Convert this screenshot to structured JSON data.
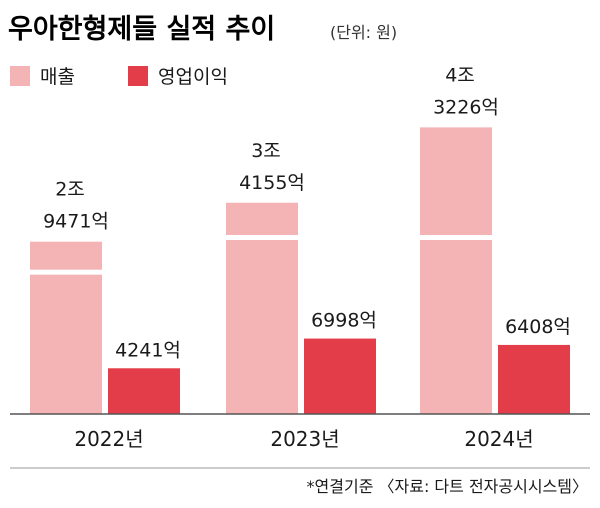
{
  "chart_data": {
    "type": "bar",
    "title": "우아한형제들 실적 추이",
    "unit": "(단위: 원)",
    "categories": [
      "2022년",
      "2023년",
      "2024년"
    ],
    "series": [
      {
        "name": "매출",
        "values": [
          29471,
          34155,
          43226
        ],
        "labels": [
          [
            "2조",
            "9471억"
          ],
          [
            "3조",
            "4155억"
          ],
          [
            "4조",
            "3226억"
          ]
        ]
      },
      {
        "name": "영업이익",
        "values": [
          4241,
          6998,
          6408
        ],
        "labels": [
          "4241억",
          "6998억",
          "6408억"
        ]
      }
    ],
    "value_unit": "억원",
    "axis_break": true,
    "legend_position": "top-left",
    "grid": false,
    "footnote": "*연결기준 〈자료: 다트 전자공시시스템〉"
  },
  "colors": {
    "revenue": "#f4b3b5",
    "operating_profit": "#e33d4a",
    "axis": "#555555",
    "background": "#ffffff"
  }
}
